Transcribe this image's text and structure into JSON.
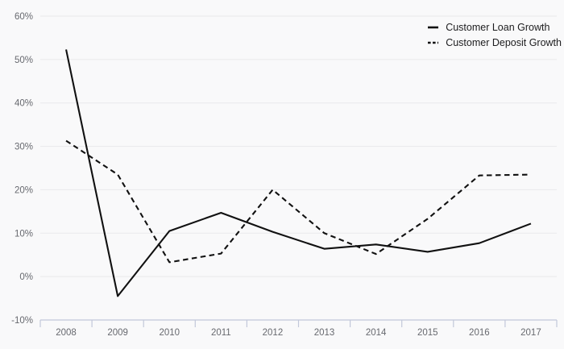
{
  "chart_data": {
    "type": "line",
    "x": [
      "2008",
      "2009",
      "2010",
      "2011",
      "2012",
      "2013",
      "2014",
      "2015",
      "2016",
      "2017"
    ],
    "series": [
      {
        "name": "Customer Loan Growth",
        "style": "solid",
        "color": "#111111",
        "values": [
          52.3,
          -4.5,
          10.5,
          14.7,
          10.3,
          6.4,
          7.4,
          5.7,
          7.7,
          12.2
        ]
      },
      {
        "name": "Customer Deposit Growth",
        "style": "dashed",
        "color": "#111111",
        "values": [
          31.3,
          23.5,
          3.3,
          5.3,
          20.0,
          10.0,
          5.2,
          13.3,
          23.3,
          23.5
        ]
      }
    ],
    "title": "",
    "xlabel": "",
    "ylabel": "",
    "ylim": [
      -10,
      60
    ],
    "y_ticks": [
      -10,
      0,
      10,
      20,
      30,
      40,
      50,
      60
    ],
    "y_tick_labels": [
      "-10%",
      "0%",
      "10%",
      "20%",
      "30%",
      "40%",
      "50%",
      "60%"
    ],
    "grid": true,
    "legend_position": "top-right",
    "colors": {
      "background": "#f9f9fa",
      "grid": "#e9e9eb",
      "axis": "#c2c8da",
      "tick_label": "#67696f"
    }
  }
}
